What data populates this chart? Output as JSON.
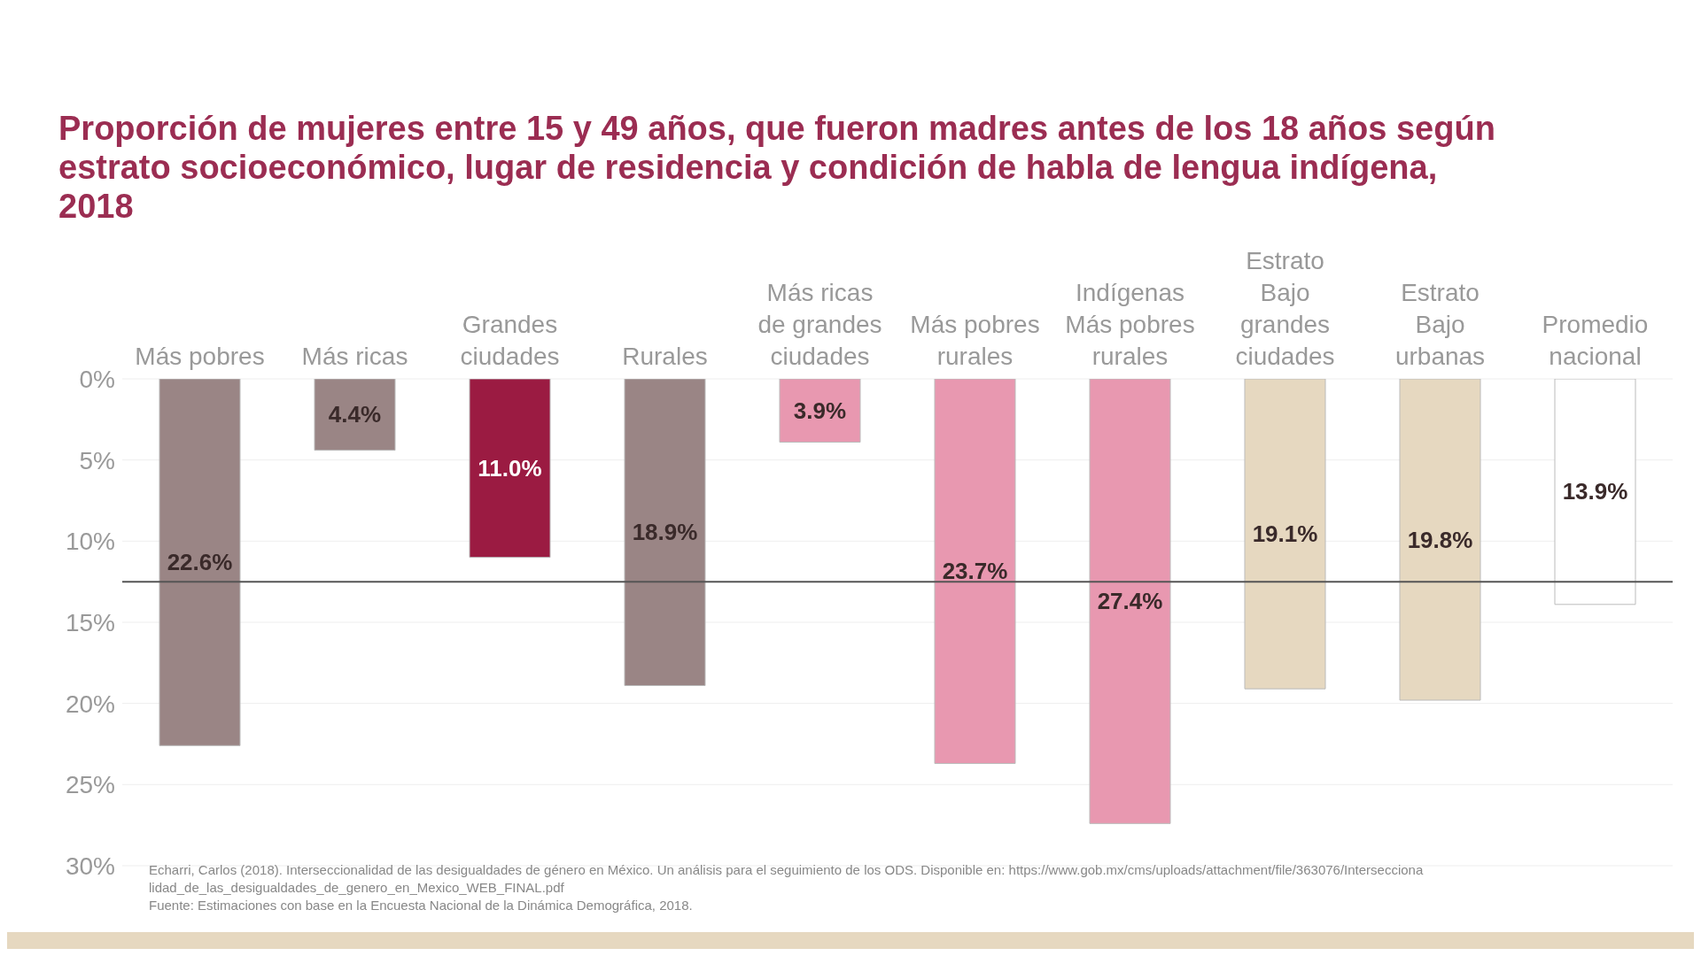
{
  "chart_data": {
    "type": "bar",
    "title": "Proporción de mujeres entre 15 y 49 años, que fueron madres antes de los 18 años según estrato socioeconómico, lugar de residencia y condición de habla de lengua indígena, 2018",
    "categories": [
      "Más pobres",
      "Más ricas",
      "Grandes\nciudades",
      "Rurales",
      "Más ricas\nde grandes\nciudades",
      "Más pobres\nrurales",
      "Indígenas\nMás pobres\nrurales",
      "Estrato\nBajo\ngrandes\nciudades",
      "Estrato\nBajo\nurbanas",
      "Promedio\nnacional"
    ],
    "values": [
      22.6,
      4.4,
      11.0,
      18.9,
      3.9,
      23.7,
      27.4,
      19.1,
      19.8,
      13.9
    ],
    "value_labels": [
      "22.6%",
      "4.4%",
      "11.0%",
      "18.9%",
      "3.9%",
      "23.7%",
      "27.4%",
      "19.1%",
      "19.8%",
      "13.9%"
    ],
    "colors": [
      "#9a8585",
      "#9a8585",
      "#9b1b42",
      "#9a8585",
      "#e898b0",
      "#e898b0",
      "#e898b0",
      "#e6d8c0",
      "#e6d8c0",
      "#ffffff"
    ],
    "ylim": [
      30,
      0
    ],
    "yticks": [
      {
        "value": 0,
        "label": "0%"
      },
      {
        "value": 5,
        "label": "5%"
      },
      {
        "value": 10,
        "label": "10%"
      },
      {
        "value": 15,
        "label": "15%"
      },
      {
        "value": 20,
        "label": "20%"
      },
      {
        "value": 25,
        "label": "25%"
      },
      {
        "value": 30,
        "label": "30%"
      }
    ],
    "grid": "y",
    "ref_lines": [
      {
        "axis": "y",
        "value": 12.5,
        "color": "#555555"
      }
    ],
    "annotations": [
      "Echarri, Carlos (2018). Interseccionalidad de las desigualdades de género en México. Un análisis para el seguimiento de los ODS. Disponible en: https://www.gob.mx/cms/uploads/attachment/file/363076/Interseccionalidad_de_las_desigualdades_de_genero_en_Mexico_WEB_FINAL.pdf",
      "Fuente: Estimaciones con base en la Encuesta Nacional de la Dinámica Demográfica, 2018."
    ]
  }
}
